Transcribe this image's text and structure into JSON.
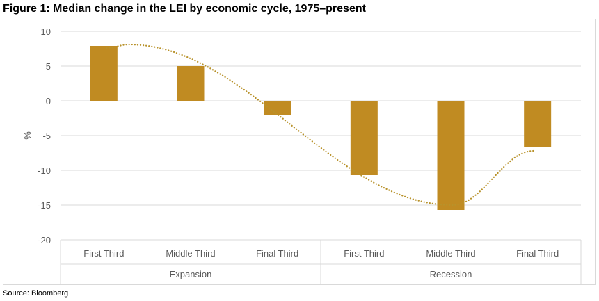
{
  "title": "Figure 1: Median change in the LEI by economic cycle, 1975–present",
  "source": "Source: Bloomberg",
  "colors": {
    "bar": "#c08b22",
    "curve": "#b8922b",
    "grid": "#d9d9d9",
    "axis_text": "#595959"
  },
  "chart_data": {
    "type": "bar",
    "title": "Figure 1: Median change in the LEI by economic cycle, 1975–present",
    "ylabel": "%",
    "xlabel": "",
    "ylim": [
      -20,
      10
    ],
    "yticks": [
      10,
      5,
      0,
      -5,
      -10,
      -15,
      -20
    ],
    "categories": [
      "First Third",
      "Middle Third",
      "Final Third",
      "First Third",
      "Middle Third",
      "Final Third"
    ],
    "groups": [
      {
        "name": "Expansion",
        "categories": [
          "First Third",
          "Middle Third",
          "Final Third"
        ]
      },
      {
        "name": "Recession",
        "categories": [
          "First Third",
          "Middle Third",
          "Final Third"
        ]
      }
    ],
    "values": [
      7.9,
      5.0,
      -2.0,
      -10.7,
      -15.7,
      -6.6
    ],
    "trend": {
      "type": "smoothed dotted line",
      "peak": 8.1,
      "trough": -15.0
    },
    "grid": true,
    "legend": "none"
  }
}
